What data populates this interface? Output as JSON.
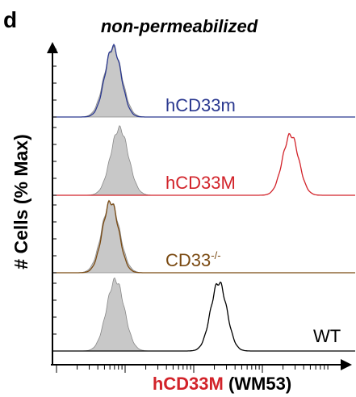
{
  "figure": {
    "panel_label": "d",
    "title": "non-permeabilized",
    "y_label": "# Cells (% Max)",
    "x_label": {
      "marker": "hCD33M",
      "clone": "(WM53)"
    },
    "tracks": [
      {
        "label": "hCD33m"
      },
      {
        "label": "hCD33M"
      },
      {
        "label": "CD33",
        "superscript": "-/-"
      },
      {
        "label": "WT"
      }
    ]
  }
}
